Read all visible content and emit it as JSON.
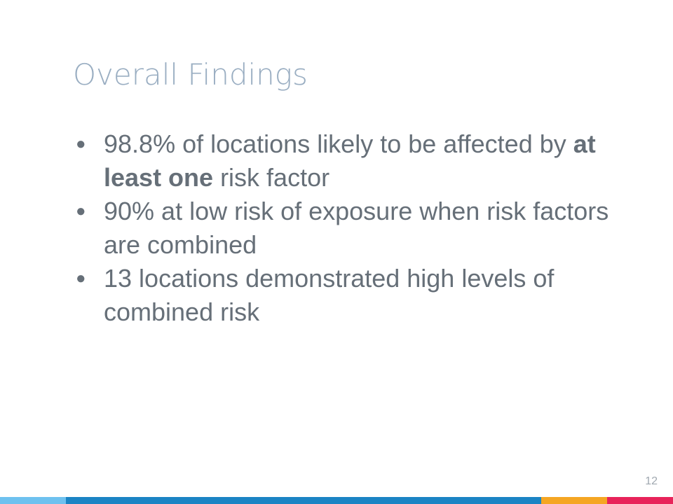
{
  "slide": {
    "title": "Overall Findings",
    "page_number": "12"
  },
  "bullets": [
    {
      "before": "98.8% of locations likely to be affected by ",
      "bold": "at least one",
      "after": " risk factor"
    },
    {
      "before": "90% at low risk of exposure when risk factors are combined",
      "bold": "",
      "after": ""
    },
    {
      "before": "13 locations demonstrated high levels of combined risk",
      "bold": "",
      "after": ""
    }
  ],
  "bullet_symbol": "●",
  "colors": {
    "title": "#9aaec2",
    "body_text": "#666f78",
    "footer_light_blue": "#6ec1ef",
    "footer_blue": "#1b84c4",
    "footer_orange": "#f5a623",
    "footer_red": "#e8235a"
  }
}
